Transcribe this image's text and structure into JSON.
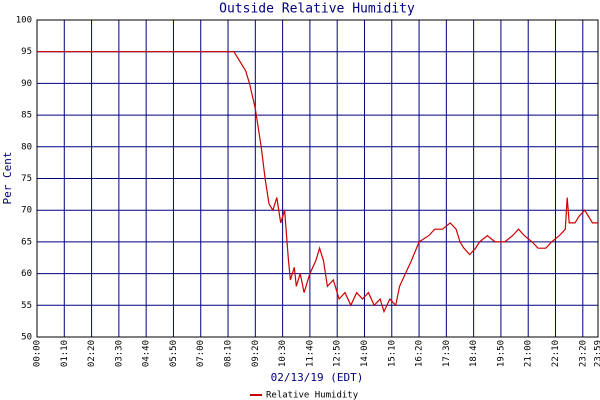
{
  "chart_data": {
    "type": "line",
    "title": "Outside Relative Humidity",
    "ylabel": "Per Cent",
    "xlabel": "02/13/19 (EDT)",
    "x": [
      0,
      505,
      515,
      535,
      545,
      560,
      575,
      585,
      595,
      605,
      615,
      625,
      635,
      645,
      650,
      660,
      665,
      675,
      685,
      700,
      715,
      725,
      735,
      745,
      760,
      775,
      790,
      805,
      820,
      835,
      850,
      865,
      880,
      890,
      905,
      920,
      930,
      945,
      960,
      980,
      1005,
      1020,
      1040,
      1060,
      1075,
      1085,
      1095,
      1110,
      1125,
      1135,
      1155,
      1175,
      1200,
      1220,
      1235,
      1250,
      1270,
      1285,
      1305,
      1320,
      1340,
      1355,
      1360,
      1365,
      1380,
      1390,
      1405,
      1415,
      1425,
      1439
    ],
    "series": [
      {
        "name": "Relative Humidity",
        "color": "#cc0000",
        "values": [
          95,
          95,
          94,
          92,
          90,
          86,
          80,
          75,
          71,
          70,
          72,
          68,
          70,
          62,
          59,
          61,
          58,
          60,
          57,
          60,
          62,
          64,
          62,
          58,
          59,
          56,
          57,
          55,
          57,
          56,
          57,
          55,
          56,
          54,
          56,
          55,
          58,
          60,
          62,
          65,
          66,
          67,
          67,
          68,
          67,
          65,
          64,
          63,
          64,
          65,
          66,
          65,
          65,
          66,
          67,
          66,
          65,
          64,
          64,
          65,
          66,
          67,
          72,
          68,
          68,
          69,
          70,
          69,
          68,
          68
        ]
      }
    ],
    "xlim": [
      0,
      1439
    ],
    "xticks": [
      {
        "value": 0,
        "label": "00:00"
      },
      {
        "value": 70,
        "label": "01:10"
      },
      {
        "value": 140,
        "label": "02:20"
      },
      {
        "value": 210,
        "label": "03:30"
      },
      {
        "value": 280,
        "label": "04:40"
      },
      {
        "value": 350,
        "label": "05:50"
      },
      {
        "value": 420,
        "label": "07:00"
      },
      {
        "value": 490,
        "label": "08:10"
      },
      {
        "value": 560,
        "label": "09:20"
      },
      {
        "value": 630,
        "label": "10:30"
      },
      {
        "value": 700,
        "label": "11:40"
      },
      {
        "value": 770,
        "label": "12:50"
      },
      {
        "value": 840,
        "label": "14:00"
      },
      {
        "value": 910,
        "label": "15:10"
      },
      {
        "value": 980,
        "label": "16:20"
      },
      {
        "value": 1050,
        "label": "17:30"
      },
      {
        "value": 1120,
        "label": "18:40"
      },
      {
        "value": 1190,
        "label": "19:50"
      },
      {
        "value": 1260,
        "label": "21:00"
      },
      {
        "value": 1330,
        "label": "22:10"
      },
      {
        "value": 1400,
        "label": "23:20"
      },
      {
        "value": 1439,
        "label": "23:59"
      }
    ],
    "ylim": [
      50,
      100
    ],
    "yticks": [
      50,
      55,
      60,
      65,
      70,
      75,
      80,
      85,
      90,
      95,
      100
    ],
    "grid": true,
    "grid_color": "#000080"
  }
}
